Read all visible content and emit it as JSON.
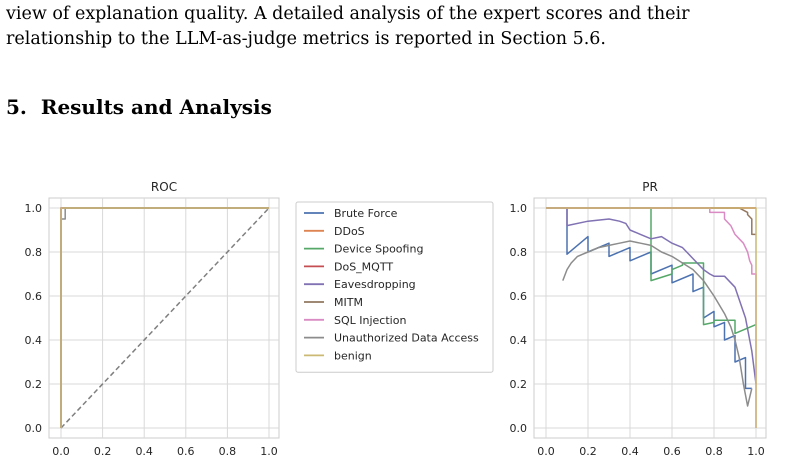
{
  "paragraph": {
    "line1": "view of explanation quality. A detailed analysis of the expert scores and their",
    "line2": "relationship to the LLM-as-judge metrics is reported in Section 5.6."
  },
  "section": {
    "number": "5.",
    "title": "Results and Analysis"
  },
  "colors": {
    "Brute Force": "#4c72b0",
    "DDoS": "#dd8452",
    "Device Spoofing": "#55a868",
    "DoS_MQTT": "#c44e52",
    "Eavesdropping": "#8172b3",
    "MITM": "#937860",
    "SQL Injection": "#da8bc3",
    "Unauthorized Data Access": "#8c8c8c",
    "benign": "#ccb974"
  },
  "legend": {
    "entries": [
      "Brute Force",
      "DDoS",
      "Device Spoofing",
      "DoS_MQTT",
      "Eavesdropping",
      "MITM",
      "SQL Injection",
      "Unauthorized Data Access",
      "benign"
    ]
  },
  "chart_data": [
    {
      "type": "line",
      "title": "ROC",
      "xlabel": "",
      "ylabel": "",
      "xlim": [
        0,
        1
      ],
      "ylim": [
        0,
        1
      ],
      "xticks": [
        "0.0",
        "0.2",
        "0.4",
        "0.6",
        "0.8",
        "1.0"
      ],
      "yticks": [
        "0.0",
        "0.2",
        "0.4",
        "0.6",
        "0.8",
        "1.0"
      ],
      "grid": true,
      "diagonal": [
        [
          0,
          0
        ],
        [
          1,
          1
        ]
      ],
      "series": [
        {
          "name": "Brute Force",
          "x": [
            0,
            0,
            1
          ],
          "y": [
            0,
            1,
            1
          ]
        },
        {
          "name": "DDoS",
          "x": [
            0,
            0,
            1
          ],
          "y": [
            0,
            1,
            1
          ]
        },
        {
          "name": "Device Spoofing",
          "x": [
            0,
            0,
            1
          ],
          "y": [
            0,
            1,
            1
          ]
        },
        {
          "name": "DoS_MQTT",
          "x": [
            0,
            0,
            1
          ],
          "y": [
            0,
            1,
            1
          ]
        },
        {
          "name": "Eavesdropping",
          "x": [
            0,
            0,
            1
          ],
          "y": [
            0,
            1,
            1
          ]
        },
        {
          "name": "MITM",
          "x": [
            0,
            0,
            1
          ],
          "y": [
            0,
            1,
            1
          ]
        },
        {
          "name": "SQL Injection",
          "x": [
            0,
            0,
            1
          ],
          "y": [
            0,
            1,
            1
          ]
        },
        {
          "name": "Unauthorized Data Access",
          "x": [
            0,
            0,
            0.02,
            0.02,
            0.03,
            0.03,
            1
          ],
          "y": [
            0,
            0.95,
            0.95,
            1,
            1,
            1,
            1
          ]
        },
        {
          "name": "benign",
          "x": [
            0,
            0,
            1
          ],
          "y": [
            0,
            1,
            1
          ]
        }
      ]
    },
    {
      "type": "line",
      "title": "PR",
      "xlabel": "",
      "ylabel": "",
      "xlim": [
        0,
        1
      ],
      "ylim": [
        0,
        1
      ],
      "xticks": [
        "0.0",
        "0.2",
        "0.4",
        "0.6",
        "0.8",
        "1.0"
      ],
      "yticks": [
        "0.0",
        "0.2",
        "0.4",
        "0.6",
        "0.8",
        "1.0"
      ],
      "grid": true,
      "series": [
        {
          "name": "Brute Force",
          "x": [
            0,
            0.1,
            0.1,
            0.2,
            0.2,
            0.3,
            0.3,
            0.4,
            0.4,
            0.5,
            0.5,
            0.6,
            0.6,
            0.7,
            0.7,
            0.75,
            0.75,
            0.8,
            0.8,
            0.85,
            0.85,
            0.9,
            0.9,
            0.95,
            0.95,
            0.98
          ],
          "y": [
            1,
            1,
            0.79,
            0.87,
            0.8,
            0.84,
            0.78,
            0.82,
            0.76,
            0.8,
            0.7,
            0.74,
            0.66,
            0.7,
            0.62,
            0.64,
            0.5,
            0.53,
            0.46,
            0.48,
            0.4,
            0.42,
            0.3,
            0.32,
            0.18,
            0.18
          ]
        },
        {
          "name": "DDoS",
          "x": [
            0,
            1
          ],
          "y": [
            1,
            1
          ]
        },
        {
          "name": "Device Spoofing",
          "x": [
            0,
            0.5,
            0.5,
            0.6,
            0.6,
            0.65,
            0.65,
            0.75,
            0.75,
            0.8,
            0.8,
            0.9,
            0.9,
            1
          ],
          "y": [
            1,
            1,
            0.67,
            0.7,
            0.72,
            0.74,
            0.75,
            0.75,
            0.47,
            0.48,
            0.49,
            0.49,
            0.43,
            0.47
          ]
        },
        {
          "name": "DoS_MQTT",
          "x": [
            0,
            1
          ],
          "y": [
            1,
            1
          ]
        },
        {
          "name": "Eavesdropping",
          "x": [
            0,
            0.05,
            0.1,
            0.1,
            0.2,
            0.3,
            0.35,
            0.38,
            0.4,
            0.45,
            0.5,
            0.55,
            0.6,
            0.65,
            0.7,
            0.72,
            0.75,
            0.78,
            0.8,
            0.85,
            0.9,
            0.95,
            0.98,
            1
          ],
          "y": [
            1,
            1,
            1,
            0.92,
            0.94,
            0.95,
            0.94,
            0.93,
            0.9,
            0.88,
            0.86,
            0.87,
            0.84,
            0.82,
            0.77,
            0.75,
            0.72,
            0.7,
            0.69,
            0.69,
            0.64,
            0.5,
            0.35,
            0.2
          ]
        },
        {
          "name": "MITM",
          "x": [
            0,
            0.92,
            0.94,
            0.96,
            0.96,
            0.98,
            0.98,
            1
          ],
          "y": [
            1,
            1,
            0.99,
            0.98,
            0.97,
            0.95,
            0.88,
            0.88
          ]
        },
        {
          "name": "SQL Injection",
          "x": [
            0,
            0.78,
            0.78,
            0.85,
            0.85,
            0.88,
            0.9,
            0.92,
            0.94,
            0.96,
            0.97,
            0.98,
            0.98,
            1,
            1
          ],
          "y": [
            1,
            1,
            0.98,
            0.98,
            0.95,
            0.92,
            0.88,
            0.86,
            0.84,
            0.8,
            0.76,
            0.74,
            0.7,
            0.7,
            0
          ]
        },
        {
          "name": "Unauthorized Data Access",
          "x": [
            0.08,
            0.1,
            0.12,
            0.15,
            0.2,
            0.25,
            0.3,
            0.35,
            0.4,
            0.45,
            0.5,
            0.55,
            0.6,
            0.65,
            0.7,
            0.75,
            0.8,
            0.85,
            0.88,
            0.9,
            0.92,
            0.94,
            0.96,
            0.98
          ],
          "y": [
            0.67,
            0.72,
            0.75,
            0.78,
            0.8,
            0.82,
            0.83,
            0.84,
            0.85,
            0.84,
            0.83,
            0.8,
            0.78,
            0.75,
            0.72,
            0.67,
            0.6,
            0.52,
            0.46,
            0.4,
            0.32,
            0.2,
            0.1,
            0.18
          ]
        },
        {
          "name": "benign",
          "x": [
            0,
            1,
            1
          ],
          "y": [
            1,
            1,
            0
          ]
        }
      ]
    }
  ]
}
